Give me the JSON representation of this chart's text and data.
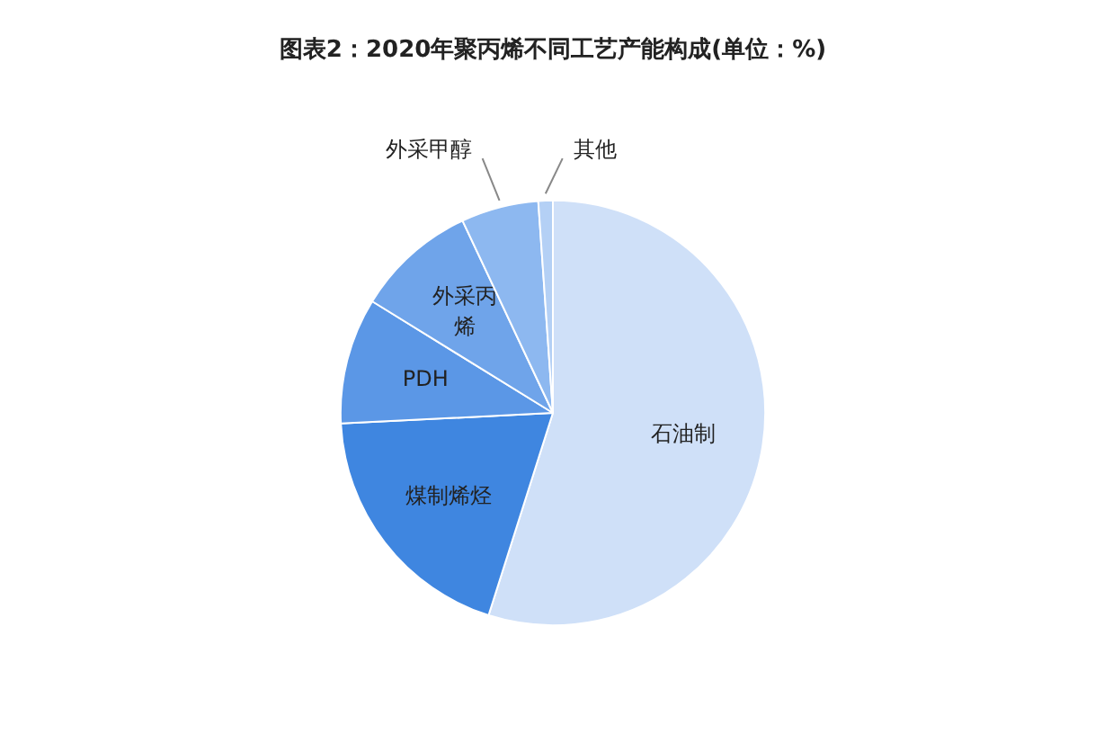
{
  "chart_data": {
    "type": "pie",
    "title": "图表2：2020年聚丙烯不同工艺产能构成(单位：%)",
    "categories": [
      "石油制",
      "煤制烯烃",
      "PDH",
      "外采丙烯",
      "外采甲醇",
      "其他"
    ],
    "values": [
      54.9,
      19.3,
      9.6,
      9.2,
      5.9,
      1.1
    ],
    "colors": [
      "#cfe0f8",
      "#3f86e0",
      "#5b97e6",
      "#6fa4ea",
      "#8db8f0",
      "#b4d0f5"
    ]
  }
}
